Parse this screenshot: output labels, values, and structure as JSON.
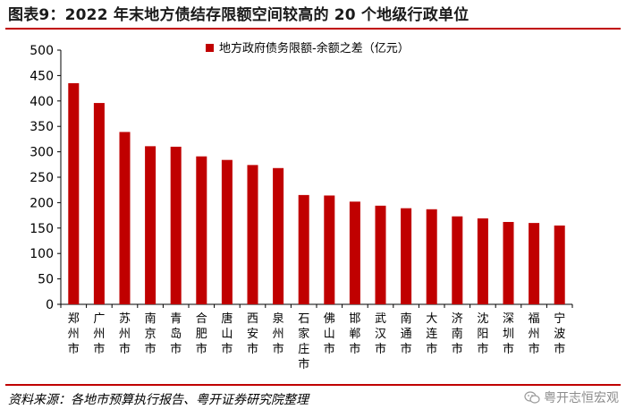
{
  "header": {
    "title": "图表9：2022 年末地方债结存限额空间较高的 20 个地级行政单位"
  },
  "footer": {
    "source": "资料来源：各地市预算执行报告、粤开证券研究院整理",
    "watermark": "粤开志恒宏观"
  },
  "colors": {
    "bar": "#c00000",
    "rule": "#c00000"
  },
  "chart_data": {
    "type": "bar",
    "title": "",
    "xlabel": "",
    "ylabel": "",
    "ylim": [
      0,
      500
    ],
    "yticks": [
      0,
      50,
      100,
      150,
      200,
      250,
      300,
      350,
      400,
      450,
      500
    ],
    "grid": false,
    "legend_position": "top-right",
    "categories": [
      "郑州市",
      "广州市",
      "苏州市",
      "南京市",
      "青岛市",
      "合肥市",
      "唐山市",
      "西安市",
      "泉州市",
      "石家庄市",
      "佛山市",
      "邯郸市",
      "武汉市",
      "南通市",
      "大连市",
      "济南市",
      "沈阳市",
      "深圳市",
      "福州市",
      "宁波市"
    ],
    "series": [
      {
        "name": "地方政府债务限额-余额之差（亿元）",
        "values": [
          435,
          396,
          339,
          311,
          310,
          291,
          284,
          274,
          268,
          215,
          214,
          202,
          194,
          189,
          187,
          173,
          169,
          162,
          160,
          155
        ]
      }
    ]
  }
}
